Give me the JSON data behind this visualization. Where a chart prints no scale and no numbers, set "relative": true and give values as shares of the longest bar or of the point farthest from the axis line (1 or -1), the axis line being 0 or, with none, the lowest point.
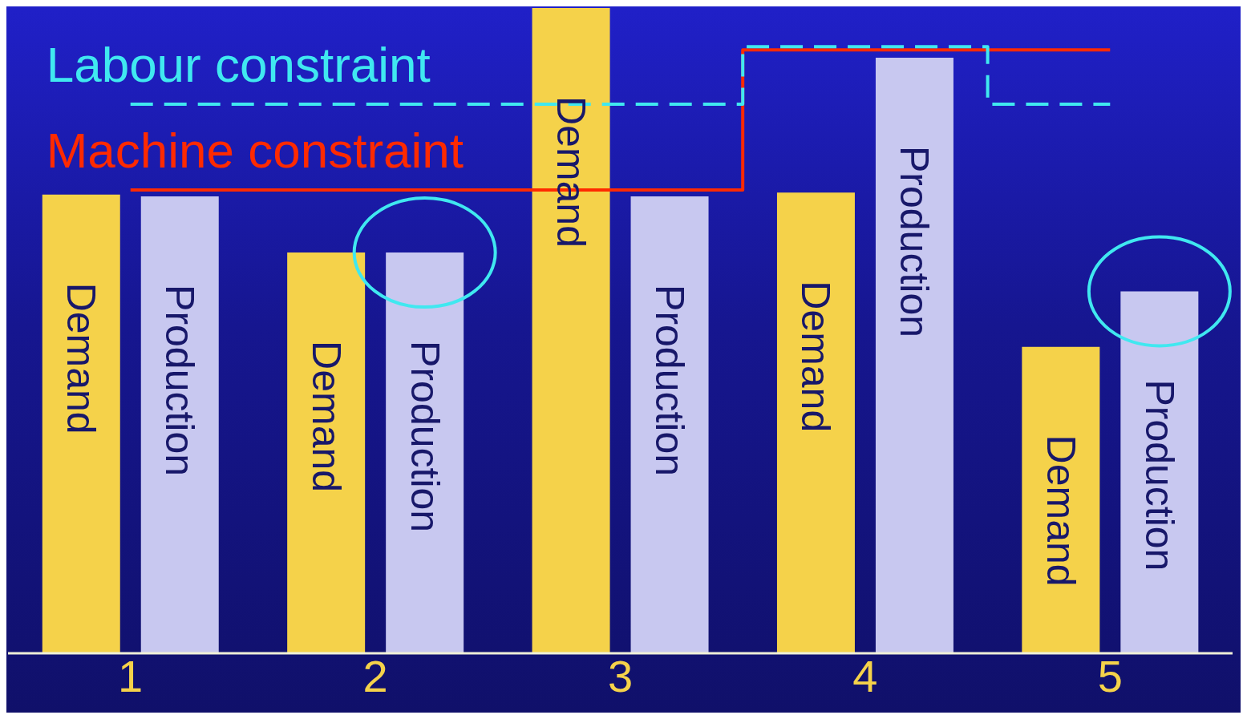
{
  "chart_data": {
    "type": "bar",
    "relative": true,
    "categories": [
      "1",
      "2",
      "3",
      "4",
      "5"
    ],
    "legend": false,
    "grid": false,
    "series": [
      {
        "name": "Demand",
        "color": "#f5d24a",
        "values": [
          0.711,
          0.621,
          1,
          0.714,
          0.475
        ]
      },
      {
        "name": "Production",
        "color": "#c8c8f0",
        "values": [
          0.708,
          0.621,
          0.708,
          0.923,
          0.561
        ]
      },
      {
        "name": "Machine constraint",
        "type": "step",
        "color": "#ff2a00",
        "line_style": "solid",
        "values": [
          0.718,
          0.718,
          0.718,
          0.935,
          0.935
        ]
      },
      {
        "name": "Labour constraint",
        "type": "step",
        "color": "#40e8f0",
        "line_style": "dashed",
        "values": [
          0.851,
          0.851,
          0.851,
          0.94,
          0.851
        ]
      }
    ]
  }
}
